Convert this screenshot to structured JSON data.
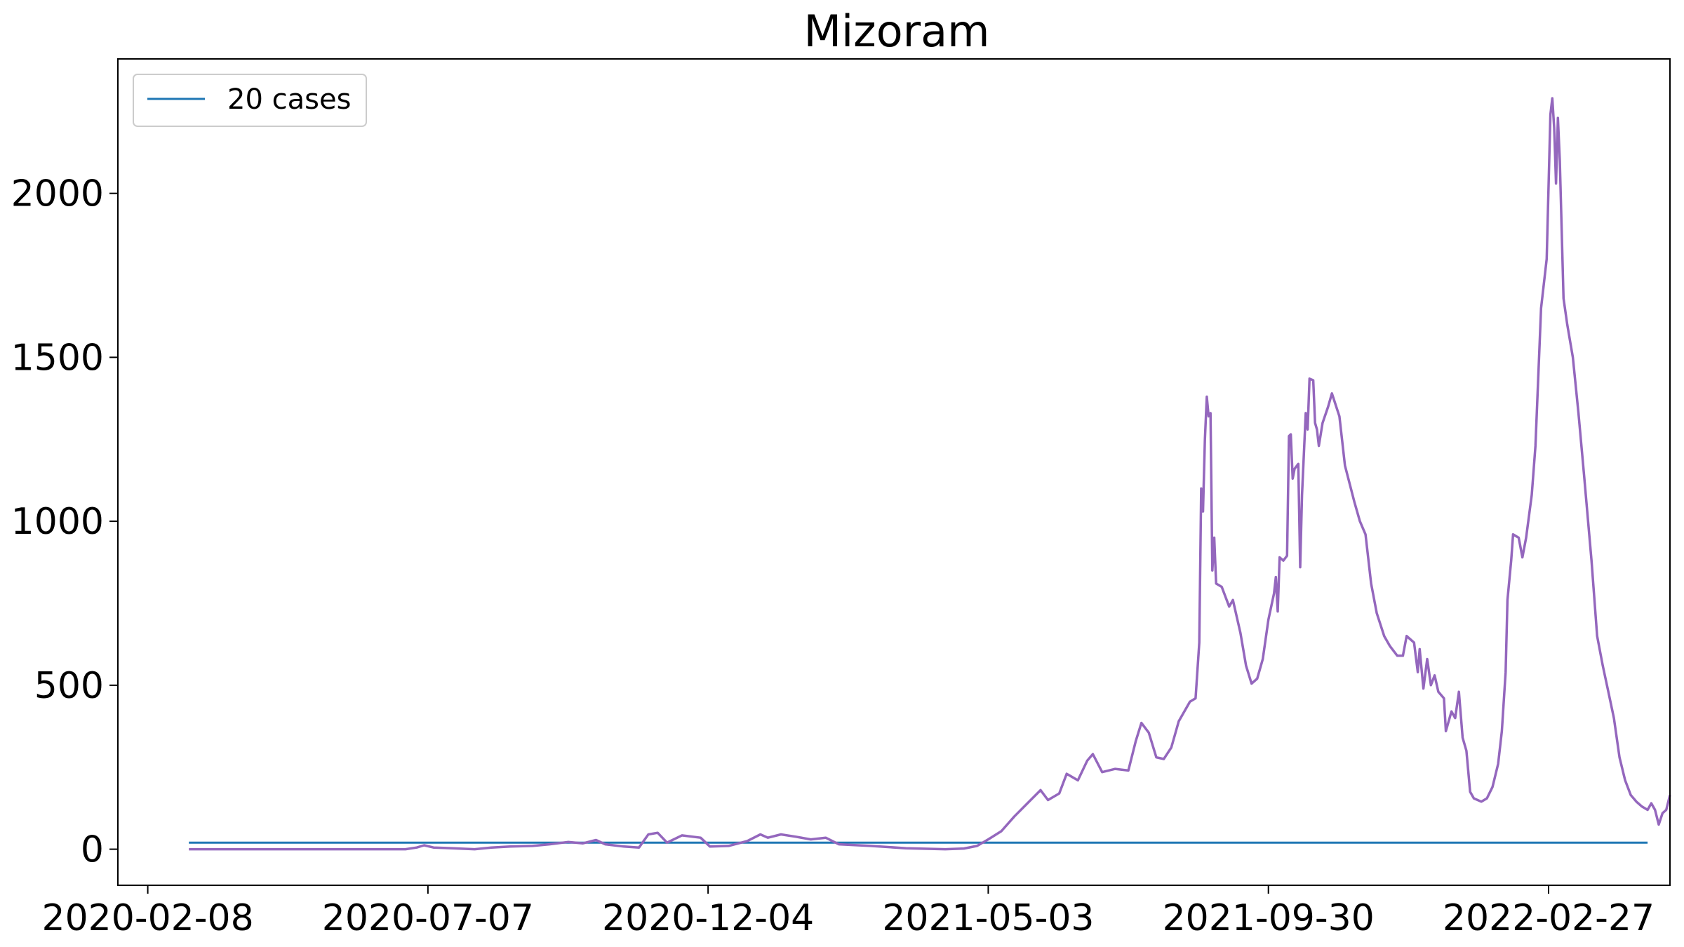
{
  "chart_data": {
    "type": "line",
    "title": "Mizoram",
    "xlabel": "",
    "ylabel": "",
    "x_tick_labels": [
      "2020-02-08",
      "2020-07-07",
      "2020-12-04",
      "2021-05-03",
      "2021-09-30",
      "2022-02-27"
    ],
    "y_tick_labels": [
      "0",
      "500",
      "1000",
      "1500",
      "2000"
    ],
    "y_ticks": [
      0,
      500,
      1000,
      1500,
      2000
    ],
    "xlim": [
      "2020-01-23",
      "2022-05-03"
    ],
    "ylim": [
      -110,
      2410
    ],
    "grid": false,
    "legend": {
      "position": "top-left",
      "entries": [
        "20 cases"
      ]
    },
    "colors": {
      "cases": "#9467bd",
      "threshold": "#1f77b4"
    },
    "series": [
      {
        "name": "20 cases",
        "points": [
          [
            "2020-03-01",
            20
          ],
          [
            "2022-04-21",
            20
          ]
        ]
      },
      {
        "points": [
          [
            "2020-03-01",
            0
          ],
          [
            "2020-04-01",
            0
          ],
          [
            "2020-05-01",
            0
          ],
          [
            "2020-06-01",
            0
          ],
          [
            "2020-06-25",
            0
          ],
          [
            "2020-07-01",
            5
          ],
          [
            "2020-07-05",
            12
          ],
          [
            "2020-07-10",
            5
          ],
          [
            "2020-07-20",
            3
          ],
          [
            "2020-08-01",
            0
          ],
          [
            "2020-08-10",
            5
          ],
          [
            "2020-08-20",
            8
          ],
          [
            "2020-09-01",
            10
          ],
          [
            "2020-09-10",
            15
          ],
          [
            "2020-09-20",
            22
          ],
          [
            "2020-09-28",
            18
          ],
          [
            "2020-10-05",
            28
          ],
          [
            "2020-10-10",
            15
          ],
          [
            "2020-10-20",
            8
          ],
          [
            "2020-10-28",
            5
          ],
          [
            "2020-11-02",
            45
          ],
          [
            "2020-11-07",
            50
          ],
          [
            "2020-11-12",
            20
          ],
          [
            "2020-11-20",
            42
          ],
          [
            "2020-11-30",
            35
          ],
          [
            "2020-12-05",
            8
          ],
          [
            "2020-12-15",
            10
          ],
          [
            "2020-12-25",
            25
          ],
          [
            "2021-01-01",
            45
          ],
          [
            "2021-01-05",
            35
          ],
          [
            "2021-01-12",
            45
          ],
          [
            "2021-01-20",
            38
          ],
          [
            "2021-01-28",
            30
          ],
          [
            "2021-02-05",
            35
          ],
          [
            "2021-02-12",
            15
          ],
          [
            "2021-03-01",
            10
          ],
          [
            "2021-03-20",
            3
          ],
          [
            "2021-04-10",
            0
          ],
          [
            "2021-04-20",
            2
          ],
          [
            "2021-04-27",
            10
          ],
          [
            "2021-05-03",
            30
          ],
          [
            "2021-05-10",
            55
          ],
          [
            "2021-05-17",
            100
          ],
          [
            "2021-05-24",
            140
          ],
          [
            "2021-05-31",
            180
          ],
          [
            "2021-06-04",
            150
          ],
          [
            "2021-06-10",
            170
          ],
          [
            "2021-06-14",
            230
          ],
          [
            "2021-06-20",
            210
          ],
          [
            "2021-06-25",
            270
          ],
          [
            "2021-06-28",
            290
          ],
          [
            "2021-07-03",
            235
          ],
          [
            "2021-07-10",
            245
          ],
          [
            "2021-07-17",
            240
          ],
          [
            "2021-07-21",
            330
          ],
          [
            "2021-07-24",
            385
          ],
          [
            "2021-07-28",
            355
          ],
          [
            "2021-08-01",
            280
          ],
          [
            "2021-08-05",
            275
          ],
          [
            "2021-08-09",
            310
          ],
          [
            "2021-08-13",
            390
          ],
          [
            "2021-08-16",
            420
          ],
          [
            "2021-08-19",
            450
          ],
          [
            "2021-08-22",
            460
          ],
          [
            "2021-08-24",
            630
          ],
          [
            "2021-08-25",
            1100
          ],
          [
            "2021-08-26",
            1030
          ],
          [
            "2021-08-27",
            1250
          ],
          [
            "2021-08-28",
            1380
          ],
          [
            "2021-08-29",
            1320
          ],
          [
            "2021-08-30",
            1330
          ],
          [
            "2021-08-31",
            850
          ],
          [
            "2021-09-01",
            950
          ],
          [
            "2021-09-02",
            810
          ],
          [
            "2021-09-05",
            800
          ],
          [
            "2021-09-09",
            740
          ],
          [
            "2021-09-11",
            760
          ],
          [
            "2021-09-15",
            660
          ],
          [
            "2021-09-18",
            560
          ],
          [
            "2021-09-21",
            505
          ],
          [
            "2021-09-24",
            520
          ],
          [
            "2021-09-27",
            580
          ],
          [
            "2021-09-30",
            700
          ],
          [
            "2021-10-03",
            780
          ],
          [
            "2021-10-04",
            830
          ],
          [
            "2021-10-05",
            725
          ],
          [
            "2021-10-06",
            890
          ],
          [
            "2021-10-08",
            880
          ],
          [
            "2021-10-10",
            895
          ],
          [
            "2021-10-11",
            1260
          ],
          [
            "2021-10-12",
            1265
          ],
          [
            "2021-10-13",
            1130
          ],
          [
            "2021-10-14",
            1160
          ],
          [
            "2021-10-16",
            1175
          ],
          [
            "2021-10-17",
            860
          ],
          [
            "2021-10-18",
            1080
          ],
          [
            "2021-10-20",
            1330
          ],
          [
            "2021-10-21",
            1280
          ],
          [
            "2021-10-22",
            1435
          ],
          [
            "2021-10-24",
            1430
          ],
          [
            "2021-10-25",
            1300
          ],
          [
            "2021-10-26",
            1280
          ],
          [
            "2021-10-27",
            1230
          ],
          [
            "2021-10-29",
            1300
          ],
          [
            "2021-11-01",
            1350
          ],
          [
            "2021-11-03",
            1390
          ],
          [
            "2021-11-07",
            1320
          ],
          [
            "2021-11-10",
            1170
          ],
          [
            "2021-11-15",
            1060
          ],
          [
            "2021-11-18",
            1000
          ],
          [
            "2021-11-21",
            960
          ],
          [
            "2021-11-24",
            810
          ],
          [
            "2021-11-27",
            720
          ],
          [
            "2021-12-01",
            650
          ],
          [
            "2021-12-04",
            620
          ],
          [
            "2021-12-08",
            590
          ],
          [
            "2021-12-11",
            590
          ],
          [
            "2021-12-13",
            650
          ],
          [
            "2021-12-17",
            630
          ],
          [
            "2021-12-19",
            540
          ],
          [
            "2021-12-20",
            610
          ],
          [
            "2021-12-22",
            490
          ],
          [
            "2021-12-24",
            580
          ],
          [
            "2021-12-26",
            500
          ],
          [
            "2021-12-28",
            530
          ],
          [
            "2021-12-30",
            480
          ],
          [
            "2022-01-02",
            460
          ],
          [
            "2022-01-03",
            360
          ],
          [
            "2022-01-06",
            420
          ],
          [
            "2022-01-08",
            400
          ],
          [
            "2022-01-10",
            480
          ],
          [
            "2022-01-12",
            340
          ],
          [
            "2022-01-14",
            300
          ],
          [
            "2022-01-16",
            175
          ],
          [
            "2022-01-18",
            155
          ],
          [
            "2022-01-22",
            145
          ],
          [
            "2022-01-25",
            155
          ],
          [
            "2022-01-28",
            190
          ],
          [
            "2022-01-31",
            260
          ],
          [
            "2022-02-02",
            360
          ],
          [
            "2022-02-04",
            540
          ],
          [
            "2022-02-05",
            760
          ],
          [
            "2022-02-07",
            880
          ],
          [
            "2022-02-08",
            960
          ],
          [
            "2022-02-11",
            950
          ],
          [
            "2022-02-13",
            890
          ],
          [
            "2022-02-15",
            950
          ],
          [
            "2022-02-18",
            1080
          ],
          [
            "2022-02-20",
            1230
          ],
          [
            "2022-02-23",
            1650
          ],
          [
            "2022-02-26",
            1800
          ],
          [
            "2022-02-28",
            2240
          ],
          [
            "2022-03-01",
            2290
          ],
          [
            "2022-03-02",
            2200
          ],
          [
            "2022-03-03",
            2030
          ],
          [
            "2022-03-04",
            2230
          ],
          [
            "2022-03-05",
            2100
          ],
          [
            "2022-03-07",
            1680
          ],
          [
            "2022-03-09",
            1600
          ],
          [
            "2022-03-12",
            1500
          ],
          [
            "2022-03-15",
            1330
          ],
          [
            "2022-03-18",
            1140
          ],
          [
            "2022-03-22",
            880
          ],
          [
            "2022-03-25",
            650
          ],
          [
            "2022-03-28",
            560
          ],
          [
            "2022-03-31",
            480
          ],
          [
            "2022-04-03",
            400
          ],
          [
            "2022-04-06",
            280
          ],
          [
            "2022-04-09",
            210
          ],
          [
            "2022-04-12",
            165
          ],
          [
            "2022-04-15",
            145
          ],
          [
            "2022-04-18",
            130
          ],
          [
            "2022-04-21",
            120
          ],
          [
            "2022-04-23",
            140
          ],
          [
            "2022-04-25",
            120
          ],
          [
            "2022-04-27",
            75
          ],
          [
            "2022-04-29",
            110
          ],
          [
            "2022-05-01",
            120
          ],
          [
            "2022-05-03",
            165
          ]
        ]
      }
    ]
  }
}
